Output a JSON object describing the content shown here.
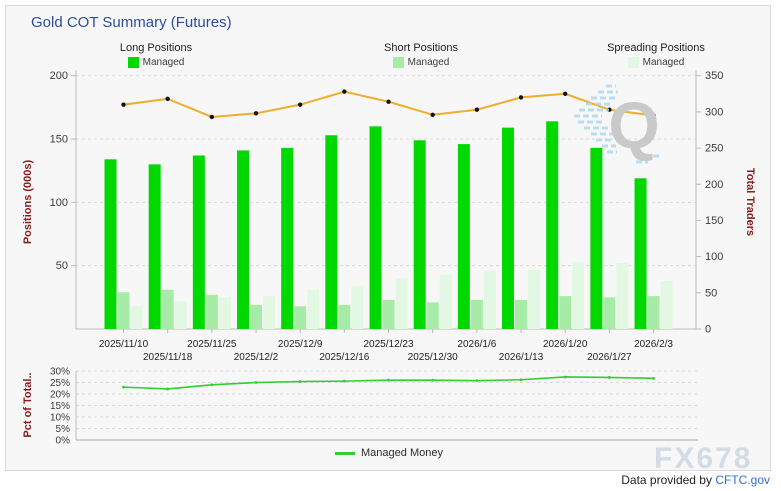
{
  "title": "Gold COT Summary (Futures)",
  "legends": {
    "long": {
      "title": "Long Positions",
      "item": "Managed"
    },
    "short": {
      "title": "Short Positions",
      "item": "Managed"
    },
    "spreading": {
      "title": "Spreading Positions",
      "item": "Managed"
    }
  },
  "bottom_legend": {
    "label": "Managed Money"
  },
  "footer": {
    "prefix": "Data provided by ",
    "link": "CFTC.gov"
  },
  "watermarks": {
    "q": "Q",
    "fx": "FX678"
  },
  "colors": {
    "title": "#2c4d9c",
    "long_bar": "#00d800",
    "short_bar": "#a6eba6",
    "spreading_bar": "#e2f8e2",
    "traders_line": "#f0ad2d",
    "traders_marker": "#111111",
    "pct_line": "#33cc33",
    "axis_title": "#8b1a1a",
    "tick_text": "#3c3c3c",
    "grid": "#d9d9d9",
    "axis_line": "#bbbbbb",
    "link": "#2f6fd0"
  },
  "chart_data": [
    {
      "type": "bar",
      "title": "Gold COT Summary (Futures)",
      "categories": [
        "2025/11/10",
        "2025/11/18",
        "2025/11/25",
        "2025/12/2",
        "2025/12/9",
        "2025/12/16",
        "2025/12/23",
        "2025/12/30",
        "2026/1/6",
        "2026/1/13",
        "2026/1/20",
        "2026/1/27",
        "2026/2/3"
      ],
      "series": [
        {
          "name": "Managed Long",
          "type": "bar",
          "axis": "left",
          "values": [
            134,
            130,
            137,
            141,
            143,
            153,
            160,
            149,
            146,
            159,
            164,
            143,
            119
          ]
        },
        {
          "name": "Managed Short",
          "type": "bar",
          "axis": "left",
          "values": [
            29,
            31,
            27,
            19,
            18,
            19,
            23,
            21,
            23,
            23,
            26,
            25,
            26
          ]
        },
        {
          "name": "Managed Spreading",
          "type": "bar",
          "axis": "left",
          "values": [
            18,
            22,
            25,
            26,
            31,
            34,
            40,
            43,
            46,
            47,
            53,
            52,
            38
          ]
        },
        {
          "name": "Total Traders",
          "type": "line",
          "axis": "right",
          "values": [
            310,
            318,
            293,
            298,
            310,
            328,
            314,
            296,
            303,
            320,
            325,
            303,
            295
          ]
        }
      ],
      "ylabel_left": "Positions (000s)",
      "ylim_left": [
        0,
        200
      ],
      "yticks_left": [
        50,
        100,
        150,
        200
      ],
      "ylabel_right": "Total Traders",
      "ylim_right": [
        0,
        350
      ],
      "yticks_right": [
        0,
        50,
        100,
        150,
        200,
        250,
        300,
        350
      ],
      "grid": "dashed-horizontal",
      "legend_position": "top"
    },
    {
      "type": "line",
      "categories": [
        "2025/11/10",
        "2025/11/18",
        "2025/11/25",
        "2025/12/2",
        "2025/12/9",
        "2025/12/16",
        "2025/12/23",
        "2025/12/30",
        "2026/1/6",
        "2026/1/13",
        "2026/1/20",
        "2026/1/27",
        "2026/2/3"
      ],
      "series": [
        {
          "name": "Managed Money",
          "type": "line",
          "values": [
            23,
            22.2,
            24,
            25,
            25.4,
            25.6,
            26,
            26,
            25.8,
            26.2,
            27.4,
            27.2,
            26.8
          ]
        }
      ],
      "ylabel": "Pct of Total..",
      "ylim": [
        0,
        30
      ],
      "yticks": [
        0,
        5,
        10,
        15,
        20,
        25,
        30
      ],
      "ytick_suffix": "%",
      "grid": "dashed-horizontal",
      "legend_position": "bottom"
    }
  ]
}
